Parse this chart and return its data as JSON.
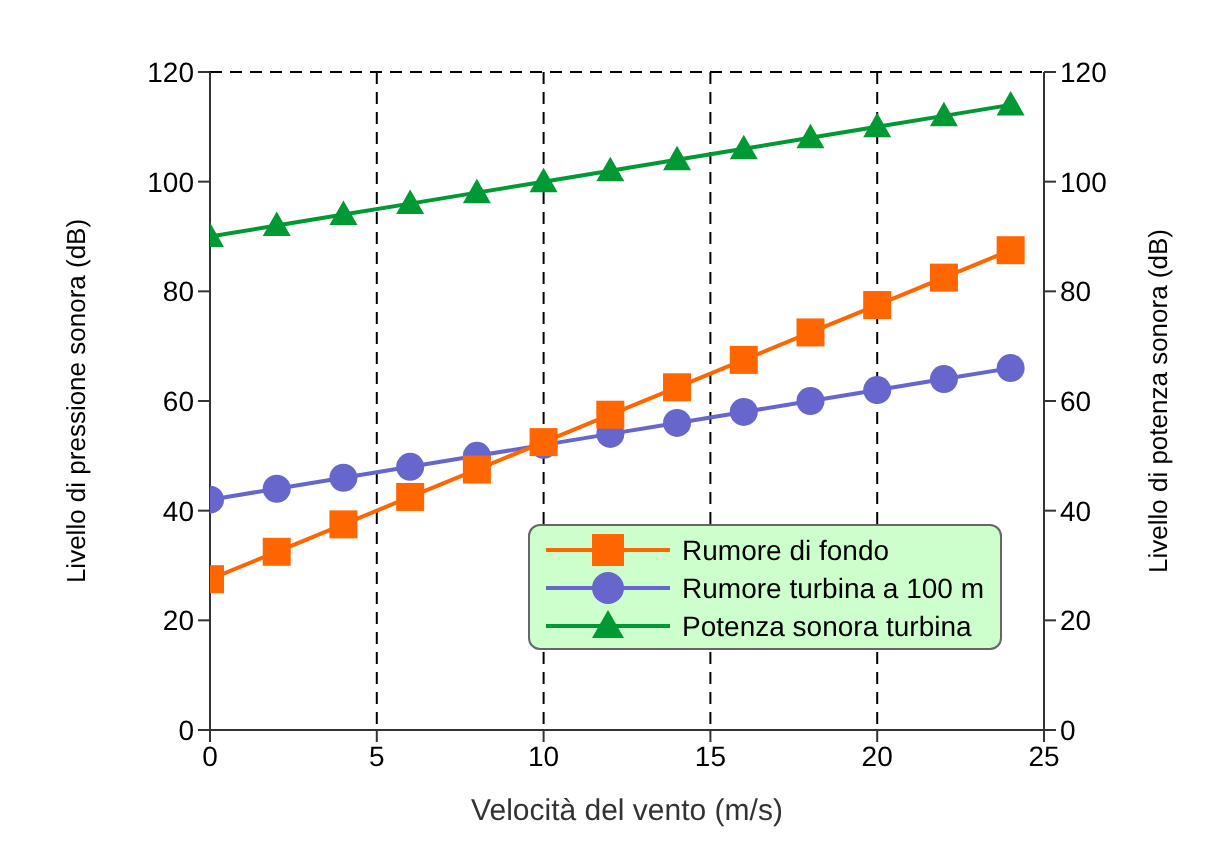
{
  "chart_data": {
    "type": "line",
    "xlabel": "Velocità del vento (m/s)",
    "ylabel": "Livello di pressione sonora (dB)",
    "y2label": "Livello di potenza sonora (dB)",
    "x": [
      0,
      2,
      4,
      6,
      8,
      10,
      12,
      14,
      16,
      18,
      20,
      22,
      24
    ],
    "series": [
      {
        "name": "Rumore di fondo",
        "color": "#ff6600",
        "marker": "square",
        "values": [
          27.5,
          32.5,
          37.5,
          42.5,
          47.5,
          52.5,
          57.5,
          62.5,
          67.5,
          72.5,
          77.5,
          82.5,
          87.5
        ]
      },
      {
        "name": "Rumore turbina a 100 m",
        "color": "#6666cc",
        "marker": "circle",
        "values": [
          42,
          44,
          46,
          48,
          50,
          52,
          54,
          56,
          58,
          60,
          62,
          64,
          66
        ]
      },
      {
        "name": "Potenza sonora turbina",
        "color": "#009933",
        "marker": "triangle",
        "axis": "y2",
        "values": [
          90,
          92,
          94,
          96,
          98,
          100,
          102,
          104,
          106,
          108,
          110,
          112,
          114
        ]
      }
    ],
    "xlim": [
      0,
      25
    ],
    "xticks": [
      0,
      5,
      10,
      15,
      20,
      25
    ],
    "ylim": [
      0,
      120
    ],
    "yticks": [
      0,
      20,
      40,
      60,
      80,
      100,
      120
    ],
    "y2lim": [
      0,
      120
    ],
    "y2ticks": [
      0,
      20,
      40,
      60,
      80,
      100,
      120
    ],
    "grid": true,
    "line_style": "solid",
    "legend": "bottom right"
  }
}
